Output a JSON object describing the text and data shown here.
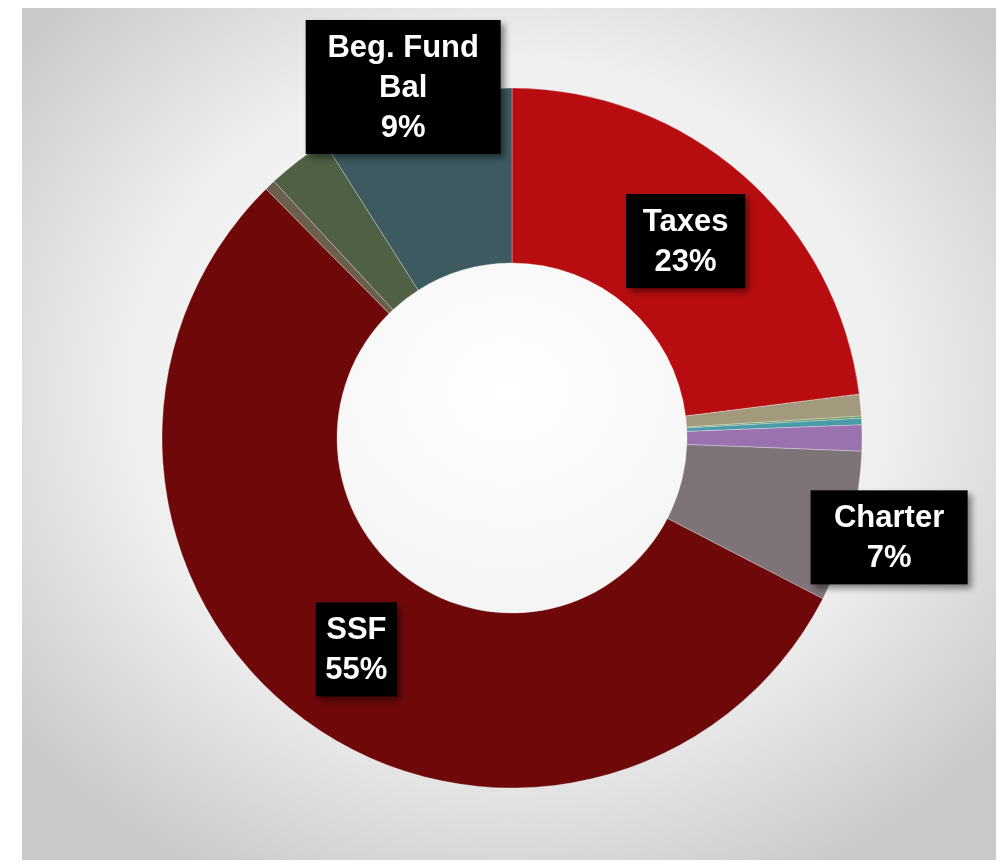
{
  "chart_data": {
    "type": "donut",
    "categories": [
      "Taxes",
      null,
      null,
      null,
      null,
      "Charter",
      "SSF",
      null,
      null,
      "Beg. Fund Bal"
    ],
    "values": [
      23,
      1,
      0.1,
      0.3,
      1.2,
      7,
      55,
      0.5,
      2.9,
      9
    ],
    "colors": [
      "#b80d10",
      "#a39a7d",
      "#6a9a5a",
      "#4a9aa8",
      "#9b72b0",
      "#7e7378",
      "#6e0809",
      "#6b5e4c",
      "#4f6045",
      "#3c5a60"
    ],
    "value_labels": [
      "23%",
      null,
      null,
      null,
      null,
      "7%",
      "55%",
      null,
      null,
      "9%"
    ]
  }
}
